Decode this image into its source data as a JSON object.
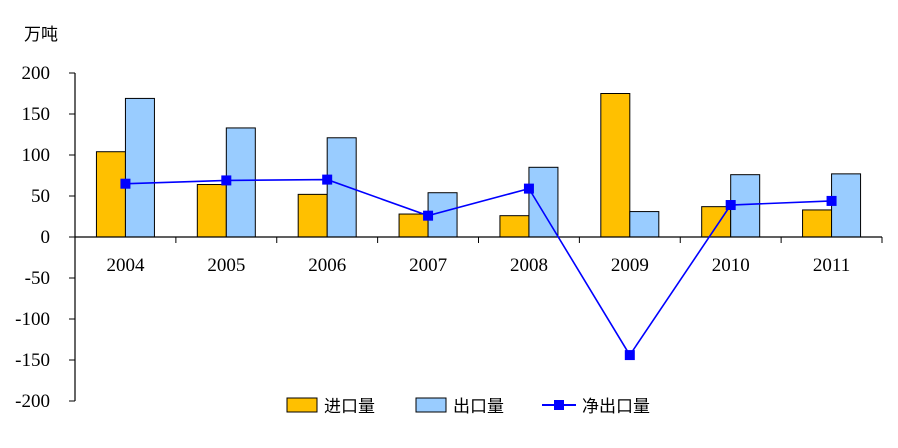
{
  "chart_data": {
    "type": "bar+line",
    "unit_label": "万吨",
    "categories": [
      "2004",
      "2005",
      "2006",
      "2007",
      "2008",
      "2009",
      "2010",
      "2011"
    ],
    "ylim": [
      -200,
      200
    ],
    "yticks": [
      "200",
      "150",
      "100",
      "50",
      "0",
      "-50",
      "-100",
      "-150",
      "-200"
    ],
    "ytick_values": [
      200,
      150,
      100,
      50,
      0,
      -50,
      -100,
      -150,
      -200
    ],
    "series": [
      {
        "name": "进口量",
        "kind": "bar",
        "color": "#FFC000",
        "values": [
          104,
          64,
          52,
          28,
          26,
          175,
          37,
          33
        ]
      },
      {
        "name": "出口量",
        "kind": "bar",
        "color": "#99CCFF",
        "values": [
          169,
          133,
          121,
          54,
          85,
          31,
          76,
          77
        ]
      },
      {
        "name": "净出口量",
        "kind": "line",
        "color": "#0000FF",
        "values": [
          65,
          69,
          70,
          26,
          59,
          -144,
          39,
          44
        ]
      }
    ],
    "grid": false,
    "legend_position": "bottom"
  }
}
